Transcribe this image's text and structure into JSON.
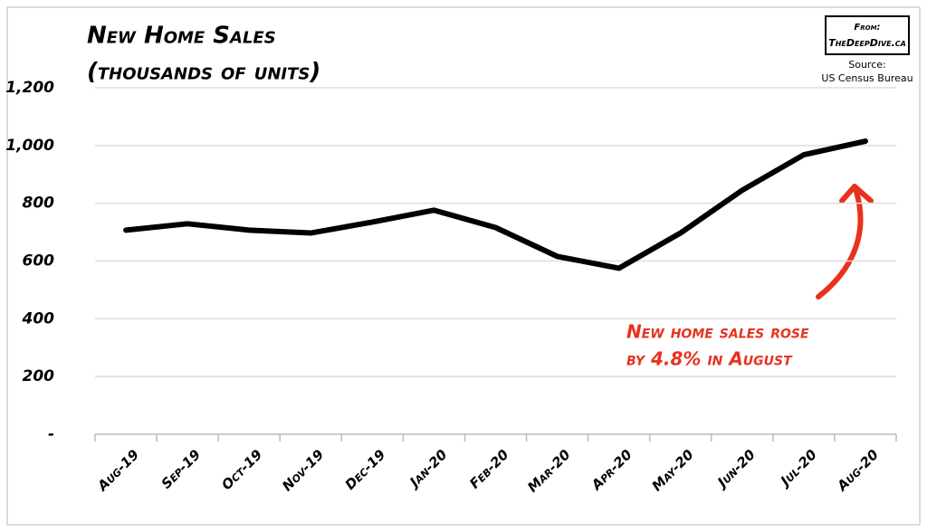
{
  "chart_data": {
    "type": "line",
    "title": [
      "New Home Sales",
      "(thousands of units)"
    ],
    "categories": [
      "Aug-19",
      "Sep-19",
      "Oct-19",
      "Nov-19",
      "Dec-19",
      "Jan-20",
      "Feb-20",
      "Mar-20",
      "Apr-20",
      "May-20",
      "Jun-20",
      "Jul-20",
      "Aug-20"
    ],
    "series": [
      {
        "name": "New Home Sales",
        "color": "#000000",
        "values": [
          707,
          729,
          707,
          697,
          735,
          776,
          716,
          616,
          575,
          697,
          845,
          968,
          1015
        ]
      }
    ],
    "ylim": [
      0,
      1200
    ],
    "yticks": [
      {
        "value": 0,
        "label": "-"
      },
      200,
      400,
      600,
      800,
      {
        "value": 1000,
        "label": "1,000"
      },
      {
        "value": 1200,
        "label": "1,200"
      }
    ],
    "grid": true,
    "annotation": [
      "New home sales rose",
      "by 4.8% in August"
    ],
    "annotation_color": "#e8321e",
    "source_box": {
      "from": "From:",
      "site": "TheDeepDive.ca",
      "source_label": "Source:",
      "source": "US Census Bureau"
    }
  }
}
